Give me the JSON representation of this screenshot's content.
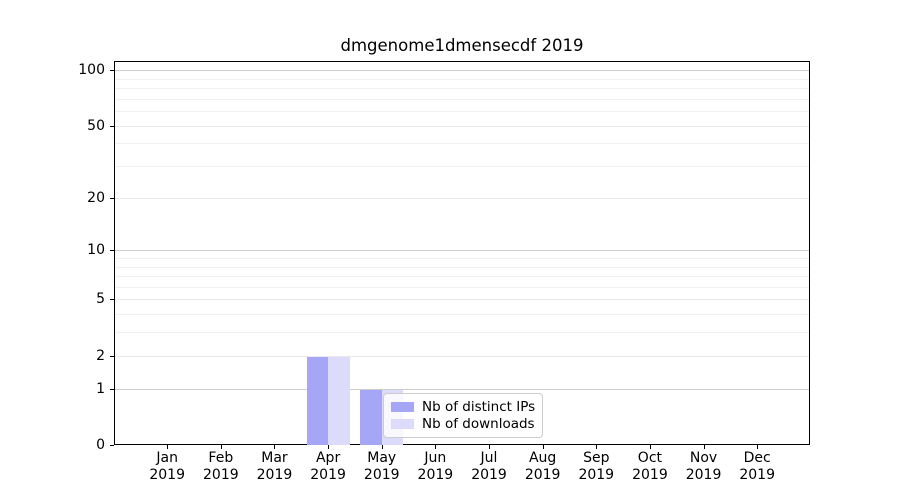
{
  "title": "dmgenome1dmensecdf 2019",
  "chart_data": {
    "type": "bar",
    "title": "dmgenome1dmensecdf 2019",
    "categories": [
      "Jan",
      "Feb",
      "Mar",
      "Apr",
      "May",
      "Jun",
      "Jul",
      "Aug",
      "Sep",
      "Oct",
      "Nov",
      "Dec"
    ],
    "category_year": "2019",
    "series": [
      {
        "name": "Nb of distinct IPs",
        "color": "#a6a6f7",
        "values": [
          0,
          0,
          0,
          2,
          1,
          0,
          0,
          0,
          0,
          0,
          0,
          0
        ]
      },
      {
        "name": "Nb of downloads",
        "color": "#dcdcfa",
        "values": [
          0,
          0,
          0,
          2,
          1,
          0,
          0,
          0,
          0,
          0,
          0,
          0
        ]
      }
    ],
    "xlabel": "",
    "ylabel": "",
    "yscale": "log1p",
    "ylim": [
      0,
      112
    ],
    "y_tick_labels": [
      0,
      1,
      2,
      5,
      10,
      20,
      50,
      100
    ],
    "y_major_gridlines": [
      1,
      10,
      100
    ],
    "y_mid_gridlines": [
      2,
      5,
      20,
      50
    ],
    "y_minor_gridlines": [
      3,
      4,
      6,
      7,
      8,
      9,
      30,
      40,
      60,
      70,
      80,
      90
    ],
    "grid": "horizontal",
    "legend_position": "lower center-right, inside plot"
  },
  "colors": {
    "bar_dark": "#a6a6f7",
    "bar_light": "#dcdcfa",
    "grid_major": "#cccccc",
    "grid_minor": "#f0f0f2",
    "axis": "#000000",
    "background": "#ffffff"
  }
}
